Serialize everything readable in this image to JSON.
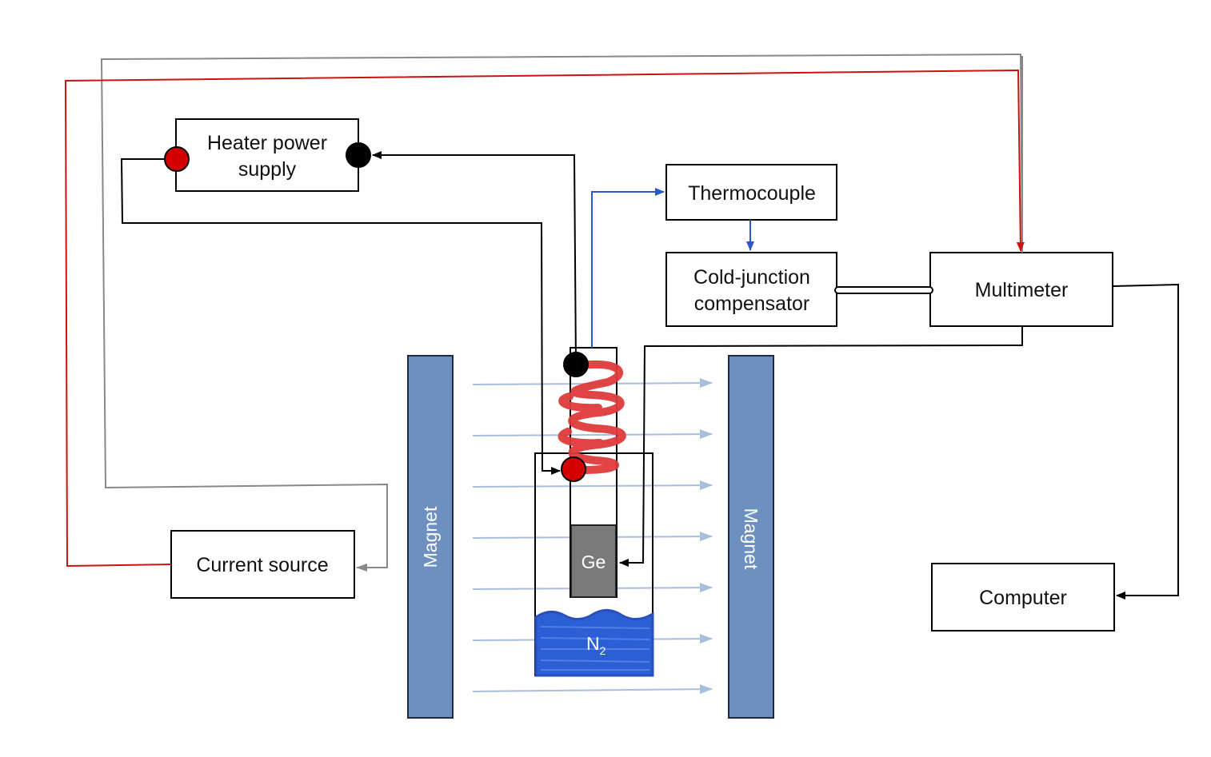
{
  "labels": {
    "heater_line1": "Heater power",
    "heater_line2": "supply",
    "thermocouple": "Thermocouple",
    "cjc_line1": "Cold-junction",
    "cjc_line2": "compensator",
    "multimeter": "Multimeter",
    "computer": "Computer",
    "current_source": "Current source",
    "magnet_left": "Magnet",
    "magnet_right": "Magnet",
    "sample": "Ge",
    "nitrogen": "N",
    "nitrogen_sub": "2"
  },
  "colors": {
    "magnet": "#6e90c1",
    "field_lines": "#a9bddc",
    "heater_wire": "#cc1111",
    "current_wire": "#888888",
    "thermocouple_wire": "#2a57c9",
    "coil": "#e03a3a",
    "terminal_red": "#d40000",
    "terminal_black": "#000000",
    "sample": "#7a7a7a",
    "nitrogen": "#2c5fd6"
  }
}
